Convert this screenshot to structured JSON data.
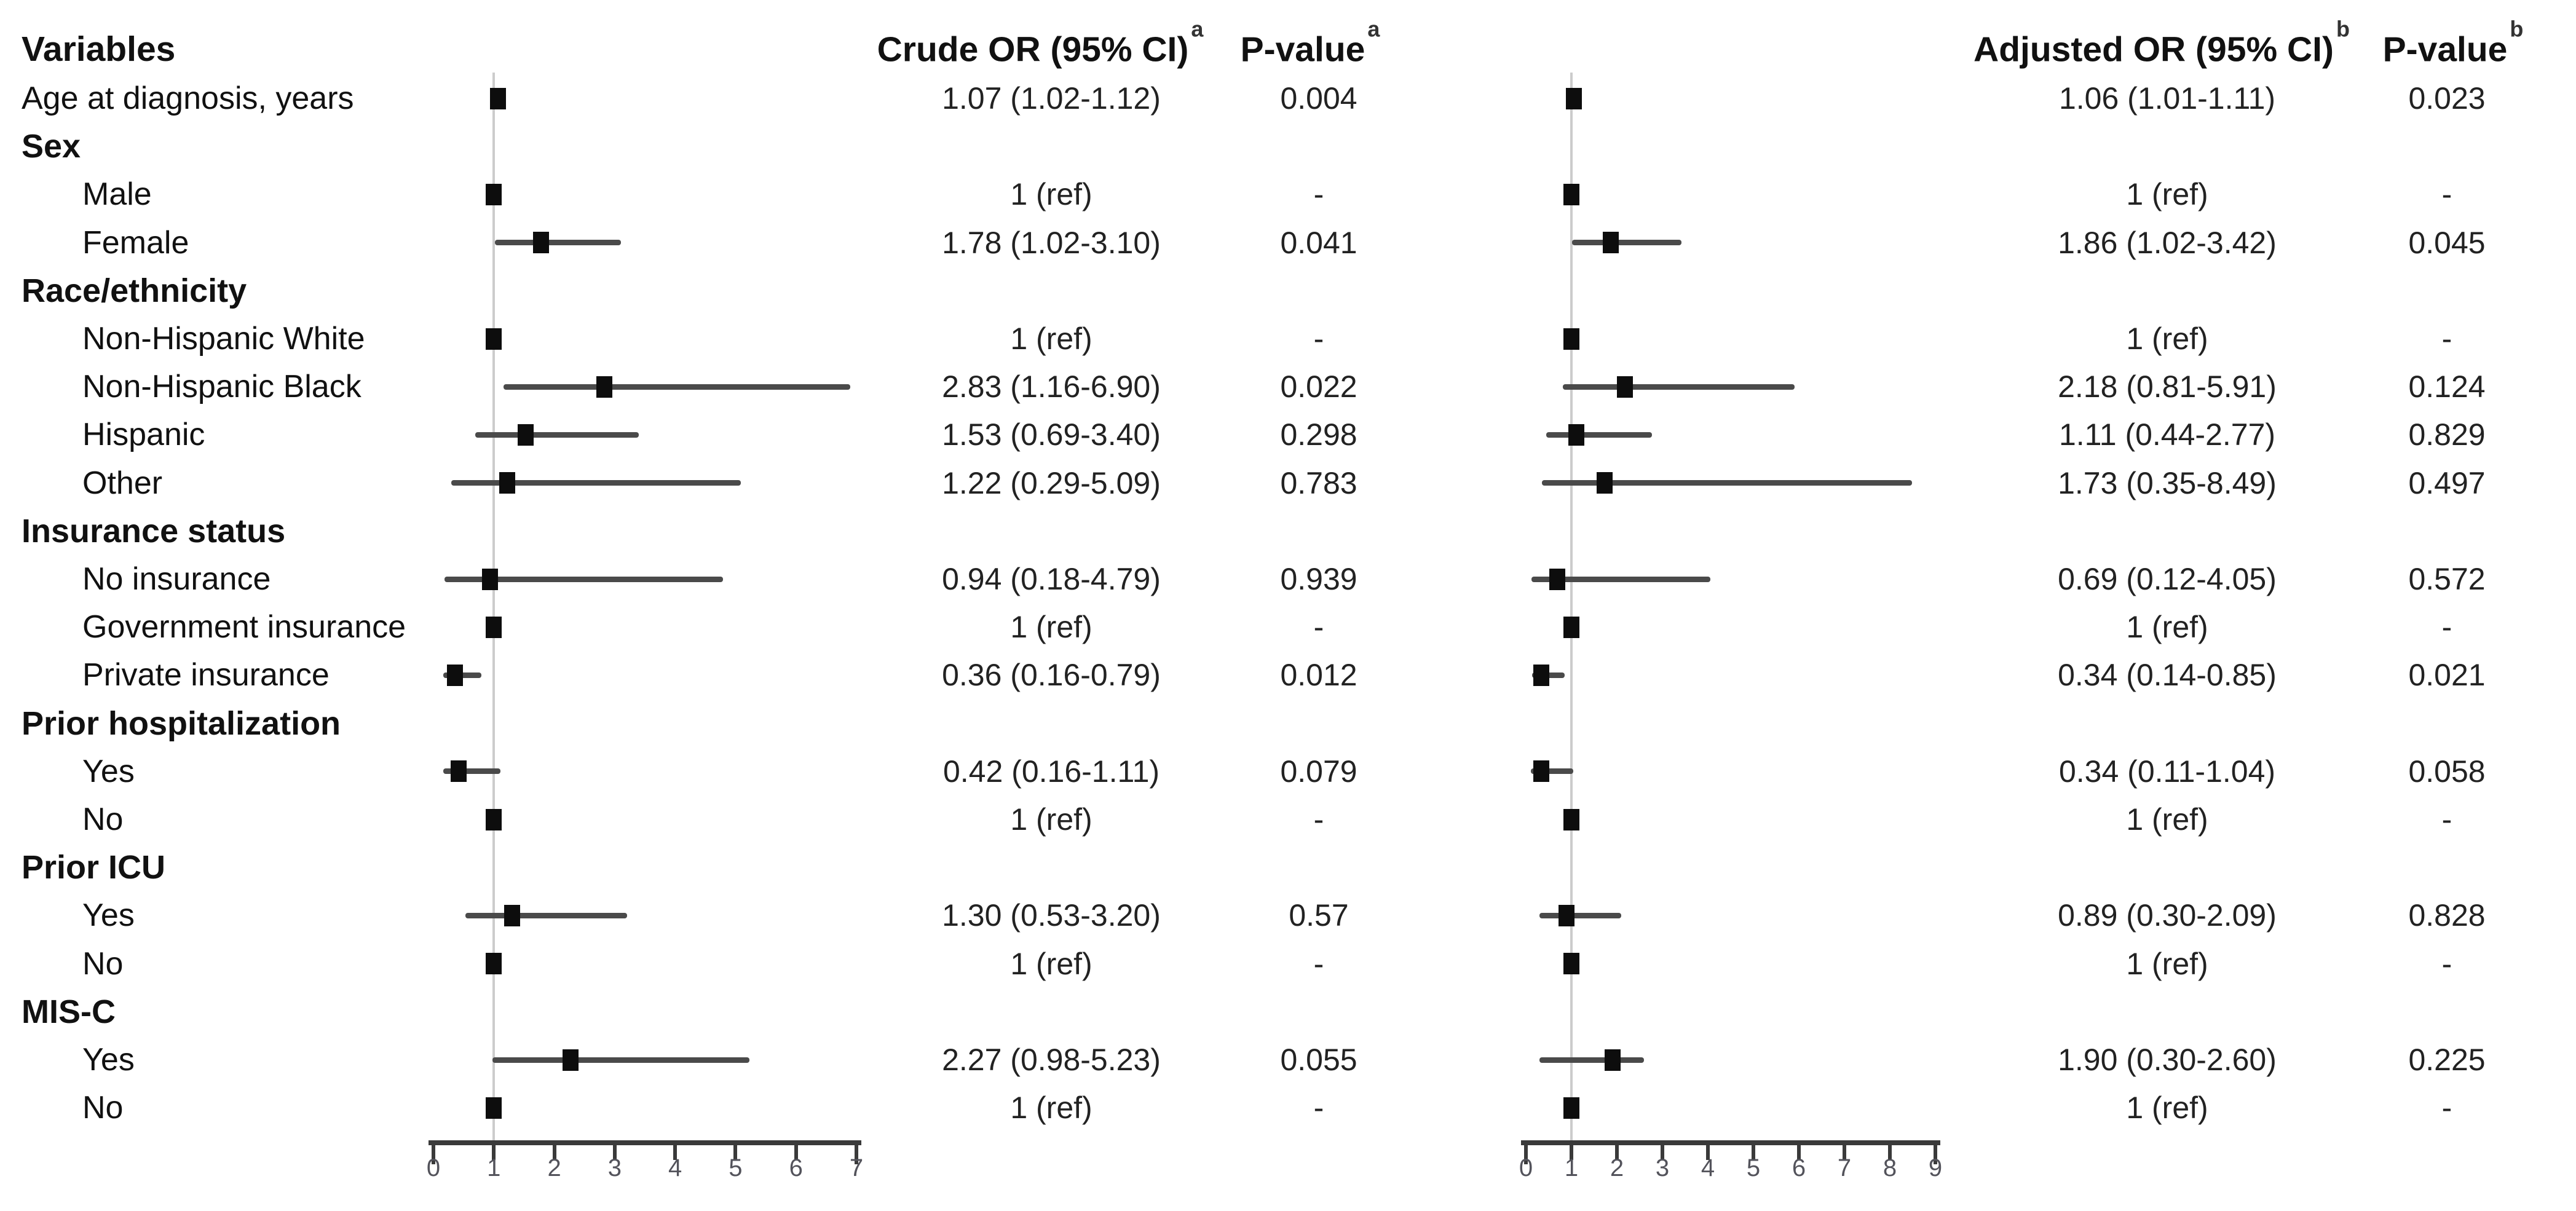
{
  "header": {
    "variables": "Variables",
    "crude_or": {
      "label": "Crude OR (95% CI)",
      "sup": "a"
    },
    "crude_p": {
      "label": "P-value",
      "sup": "a"
    },
    "adjusted_or": {
      "label": "Adjusted OR (95% CI)",
      "sup": "b"
    },
    "adjusted_p": {
      "label": "P-value",
      "sup": "b"
    }
  },
  "colors": {
    "marker": "#0d0d0d",
    "ci_line": "#4a4a4a",
    "ref_line": "#cccccc",
    "axis": "#3a3a3a",
    "tick_label": "#53535b",
    "text": "#111111"
  },
  "chart_data": {
    "type": "forest",
    "legend_position": "none",
    "grid": false,
    "panels": [
      {
        "id": "crude",
        "axis_min": 0,
        "axis_max": 7,
        "ticks": [
          0,
          1,
          2,
          3,
          4,
          5,
          6,
          7
        ],
        "ref_line": 1
      },
      {
        "id": "adjusted",
        "axis_min": 0,
        "axis_max": 9,
        "ticks": [
          0,
          1,
          2,
          3,
          4,
          5,
          6,
          7,
          8,
          9
        ],
        "ref_line": 1
      }
    ],
    "rows": [
      {
        "label": "Age at diagnosis, years",
        "indent": 0,
        "section": false,
        "crude": {
          "or": "1.07 (1.02-1.12)",
          "p": "0.004",
          "est": 1.07,
          "lo": 1.02,
          "hi": 1.12
        },
        "adjusted": {
          "or": "1.06 (1.01-1.11)",
          "p": "0.023",
          "est": 1.06,
          "lo": 1.01,
          "hi": 1.11
        }
      },
      {
        "label": "Sex",
        "indent": 0,
        "section": true,
        "crude": null,
        "adjusted": null
      },
      {
        "label": "Male",
        "indent": 1,
        "section": false,
        "crude": {
          "or": "1 (ref)",
          "p": "-",
          "est": 1,
          "lo": null,
          "hi": null
        },
        "adjusted": {
          "or": "1 (ref)",
          "p": "-",
          "est": 1,
          "lo": null,
          "hi": null
        }
      },
      {
        "label": "Female",
        "indent": 1,
        "section": false,
        "crude": {
          "or": "1.78 (1.02-3.10)",
          "p": "0.041",
          "est": 1.78,
          "lo": 1.02,
          "hi": 3.1
        },
        "adjusted": {
          "or": "1.86 (1.02-3.42)",
          "p": "0.045",
          "est": 1.86,
          "lo": 1.02,
          "hi": 3.42
        }
      },
      {
        "label": "Race/ethnicity",
        "indent": 0,
        "section": true,
        "crude": null,
        "adjusted": null
      },
      {
        "label": "Non-Hispanic White",
        "indent": 1,
        "section": false,
        "crude": {
          "or": "1 (ref)",
          "p": "-",
          "est": 1,
          "lo": null,
          "hi": null
        },
        "adjusted": {
          "or": "1 (ref)",
          "p": "-",
          "est": 1,
          "lo": null,
          "hi": null
        }
      },
      {
        "label": "Non-Hispanic Black",
        "indent": 1,
        "section": false,
        "crude": {
          "or": "2.83 (1.16-6.90)",
          "p": "0.022",
          "est": 2.83,
          "lo": 1.16,
          "hi": 6.9
        },
        "adjusted": {
          "or": "2.18 (0.81-5.91)",
          "p": "0.124",
          "est": 2.18,
          "lo": 0.81,
          "hi": 5.91
        }
      },
      {
        "label": "Hispanic",
        "indent": 1,
        "section": false,
        "crude": {
          "or": "1.53 (0.69-3.40)",
          "p": "0.298",
          "est": 1.53,
          "lo": 0.69,
          "hi": 3.4
        },
        "adjusted": {
          "or": "1.11 (0.44-2.77)",
          "p": "0.829",
          "est": 1.11,
          "lo": 0.44,
          "hi": 2.77
        }
      },
      {
        "label": "Other",
        "indent": 1,
        "section": false,
        "crude": {
          "or": "1.22 (0.29-5.09)",
          "p": "0.783",
          "est": 1.22,
          "lo": 0.29,
          "hi": 5.09
        },
        "adjusted": {
          "or": "1.73 (0.35-8.49)",
          "p": "0.497",
          "est": 1.73,
          "lo": 0.35,
          "hi": 8.49
        }
      },
      {
        "label": "Insurance status",
        "indent": 0,
        "section": true,
        "crude": null,
        "adjusted": null
      },
      {
        "label": "No insurance",
        "indent": 1,
        "section": false,
        "crude": {
          "or": "0.94 (0.18-4.79)",
          "p": "0.939",
          "est": 0.94,
          "lo": 0.18,
          "hi": 4.79
        },
        "adjusted": {
          "or": "0.69 (0.12-4.05)",
          "p": "0.572",
          "est": 0.69,
          "lo": 0.12,
          "hi": 4.05
        }
      },
      {
        "label": "Government insurance",
        "indent": 1,
        "section": false,
        "crude": {
          "or": "1 (ref)",
          "p": "-",
          "est": 1,
          "lo": null,
          "hi": null
        },
        "adjusted": {
          "or": "1 (ref)",
          "p": "-",
          "est": 1,
          "lo": null,
          "hi": null
        }
      },
      {
        "label": "Private insurance",
        "indent": 1,
        "section": false,
        "crude": {
          "or": "0.36 (0.16-0.79)",
          "p": "0.012",
          "est": 0.36,
          "lo": 0.16,
          "hi": 0.79
        },
        "adjusted": {
          "or": "0.34 (0.14-0.85)",
          "p": "0.021",
          "est": 0.34,
          "lo": 0.14,
          "hi": 0.85
        }
      },
      {
        "label": "Prior hospitalization",
        "indent": 0,
        "section": true,
        "crude": null,
        "adjusted": null
      },
      {
        "label": "Yes",
        "indent": 1,
        "section": false,
        "crude": {
          "or": "0.42 (0.16-1.11)",
          "p": "0.079",
          "est": 0.42,
          "lo": 0.16,
          "hi": 1.11
        },
        "adjusted": {
          "or": "0.34 (0.11-1.04)",
          "p": "0.058",
          "est": 0.34,
          "lo": 0.11,
          "hi": 1.04
        }
      },
      {
        "label": "No",
        "indent": 1,
        "section": false,
        "crude": {
          "or": "1 (ref)",
          "p": "-",
          "est": 1,
          "lo": null,
          "hi": null
        },
        "adjusted": {
          "or": "1 (ref)",
          "p": "-",
          "est": 1,
          "lo": null,
          "hi": null
        }
      },
      {
        "label": "Prior ICU",
        "indent": 0,
        "section": true,
        "crude": null,
        "adjusted": null
      },
      {
        "label": "Yes",
        "indent": 1,
        "section": false,
        "crude": {
          "or": "1.30 (0.53-3.20)",
          "p": "0.57",
          "est": 1.3,
          "lo": 0.53,
          "hi": 3.2
        },
        "adjusted": {
          "or": "0.89 (0.30-2.09)",
          "p": "0.828",
          "est": 0.89,
          "lo": 0.3,
          "hi": 2.09
        }
      },
      {
        "label": "No",
        "indent": 1,
        "section": false,
        "crude": {
          "or": "1 (ref)",
          "p": "-",
          "est": 1,
          "lo": null,
          "hi": null
        },
        "adjusted": {
          "or": "1 (ref)",
          "p": "-",
          "est": 1,
          "lo": null,
          "hi": null
        }
      },
      {
        "label": "MIS-C",
        "indent": 0,
        "section": true,
        "crude": null,
        "adjusted": null
      },
      {
        "label": "Yes",
        "indent": 1,
        "section": false,
        "crude": {
          "or": "2.27 (0.98-5.23)",
          "p": "0.055",
          "est": 2.27,
          "lo": 0.98,
          "hi": 5.23
        },
        "adjusted": {
          "or": "1.90 (0.30-2.60)",
          "p": "0.225",
          "est": 1.9,
          "lo": 0.3,
          "hi": 2.6
        }
      },
      {
        "label": "No",
        "indent": 1,
        "section": false,
        "crude": {
          "or": "1 (ref)",
          "p": "-",
          "est": 1,
          "lo": null,
          "hi": null
        },
        "adjusted": {
          "or": "1 (ref)",
          "p": "-",
          "est": 1,
          "lo": null,
          "hi": null
        }
      }
    ]
  }
}
